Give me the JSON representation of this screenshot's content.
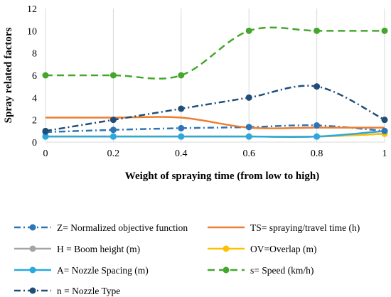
{
  "chart_data": {
    "type": "line",
    "title": "",
    "xlabel": "Weight of spraying time (from low to high)",
    "ylabel": "Spray related factors",
    "x": [
      0,
      0.2,
      0.4,
      0.6,
      0.8,
      1
    ],
    "x_tick_labels": [
      "0",
      "0.2",
      "0.4",
      "0.6",
      "0.8",
      "1"
    ],
    "xlim": [
      0,
      1
    ],
    "ylim": [
      0,
      12
    ],
    "y_ticks": [
      0,
      2,
      4,
      6,
      8,
      10,
      12
    ],
    "y_tick_labels": [
      "0",
      "2",
      "4",
      "6",
      "8",
      "10",
      "12"
    ],
    "grid": "vertical",
    "smooth": true,
    "legend_position": "bottom",
    "series": [
      {
        "name": "Z= Normalized objective function",
        "values": [
          0.9,
          1.1,
          1.25,
          1.35,
          1.5,
          1.0
        ],
        "color": "#2e75b6",
        "dash": "dash-dot",
        "marker": "circle"
      },
      {
        "name": "TS= spraying/travel time (h)",
        "values": [
          2.2,
          2.2,
          2.2,
          1.3,
          1.3,
          1.3
        ],
        "color": "#ed7d31",
        "dash": "solid",
        "marker": "none"
      },
      {
        "name": "H = Boom height (m)",
        "values": [
          0.5,
          0.5,
          0.5,
          0.5,
          0.5,
          0.75
        ],
        "color": "#a5a5a5",
        "dash": "solid",
        "marker": "circle"
      },
      {
        "name": "OV=Overlap (m)",
        "values": [
          0.5,
          0.5,
          0.5,
          0.5,
          0.5,
          0.75
        ],
        "color": "#ffc000",
        "dash": "solid",
        "marker": "circle"
      },
      {
        "name": "A= Nozzle Spacing (m)",
        "values": [
          0.5,
          0.5,
          0.5,
          0.5,
          0.5,
          1.0
        ],
        "color": "#29a9e0",
        "dash": "solid",
        "marker": "circle"
      },
      {
        "name": "s= Speed (km/h)",
        "values": [
          6,
          6,
          6,
          10,
          10,
          10
        ],
        "color": "#44a72d",
        "dash": "dashed",
        "marker": "circle"
      },
      {
        "name": "n = Nozzle Type",
        "values": [
          1,
          2,
          3,
          4,
          5,
          2
        ],
        "color": "#1f4e79",
        "dash": "dash-dot",
        "marker": "circle"
      }
    ]
  }
}
